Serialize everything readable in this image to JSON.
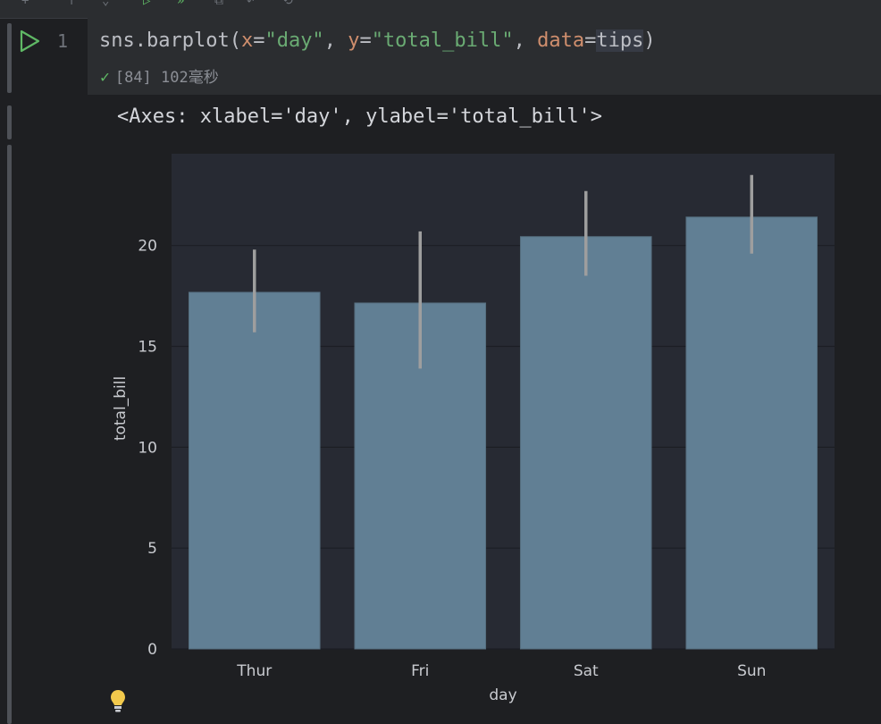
{
  "cell": {
    "line_number": "1",
    "code_tokens": [
      {
        "text": "sns.barplot(",
        "cls": ""
      },
      {
        "text": "x",
        "cls": "tok-param"
      },
      {
        "text": "=",
        "cls": ""
      },
      {
        "text": "\"day\"",
        "cls": "tok-str"
      },
      {
        "text": ", ",
        "cls": ""
      },
      {
        "text": "y",
        "cls": "tok-param"
      },
      {
        "text": "=",
        "cls": ""
      },
      {
        "text": "\"total_bill\"",
        "cls": "tok-str"
      },
      {
        "text": ", ",
        "cls": ""
      },
      {
        "text": "data",
        "cls": "tok-param"
      },
      {
        "text": "=",
        "cls": ""
      },
      {
        "text": "tips",
        "cls": "tok-sel"
      },
      {
        "text": ")",
        "cls": ""
      }
    ],
    "exec_count": "[84]",
    "exec_time": "102毫秒"
  },
  "output": {
    "repr_text": "<Axes: xlabel='day', ylabel='total_bill'>"
  },
  "colors": {
    "bar": "#617f94",
    "error_bar": "#9e9e9e",
    "plot_bg": "#272a33",
    "grid": "#1c1e24",
    "accent_green": "#5fb865"
  },
  "chart_data": {
    "type": "bar",
    "categories": [
      "Thur",
      "Fri",
      "Sat",
      "Sun"
    ],
    "values": [
      17.68,
      17.15,
      20.44,
      21.41
    ],
    "error_low": [
      15.7,
      13.9,
      18.5,
      19.6
    ],
    "error_high": [
      19.8,
      20.7,
      22.7,
      23.5
    ],
    "xlabel": "day",
    "ylabel": "total_bill",
    "yticks": [
      0,
      5,
      10,
      15,
      20
    ],
    "ylim": [
      0,
      24.55
    ],
    "grid": true,
    "title": ""
  }
}
